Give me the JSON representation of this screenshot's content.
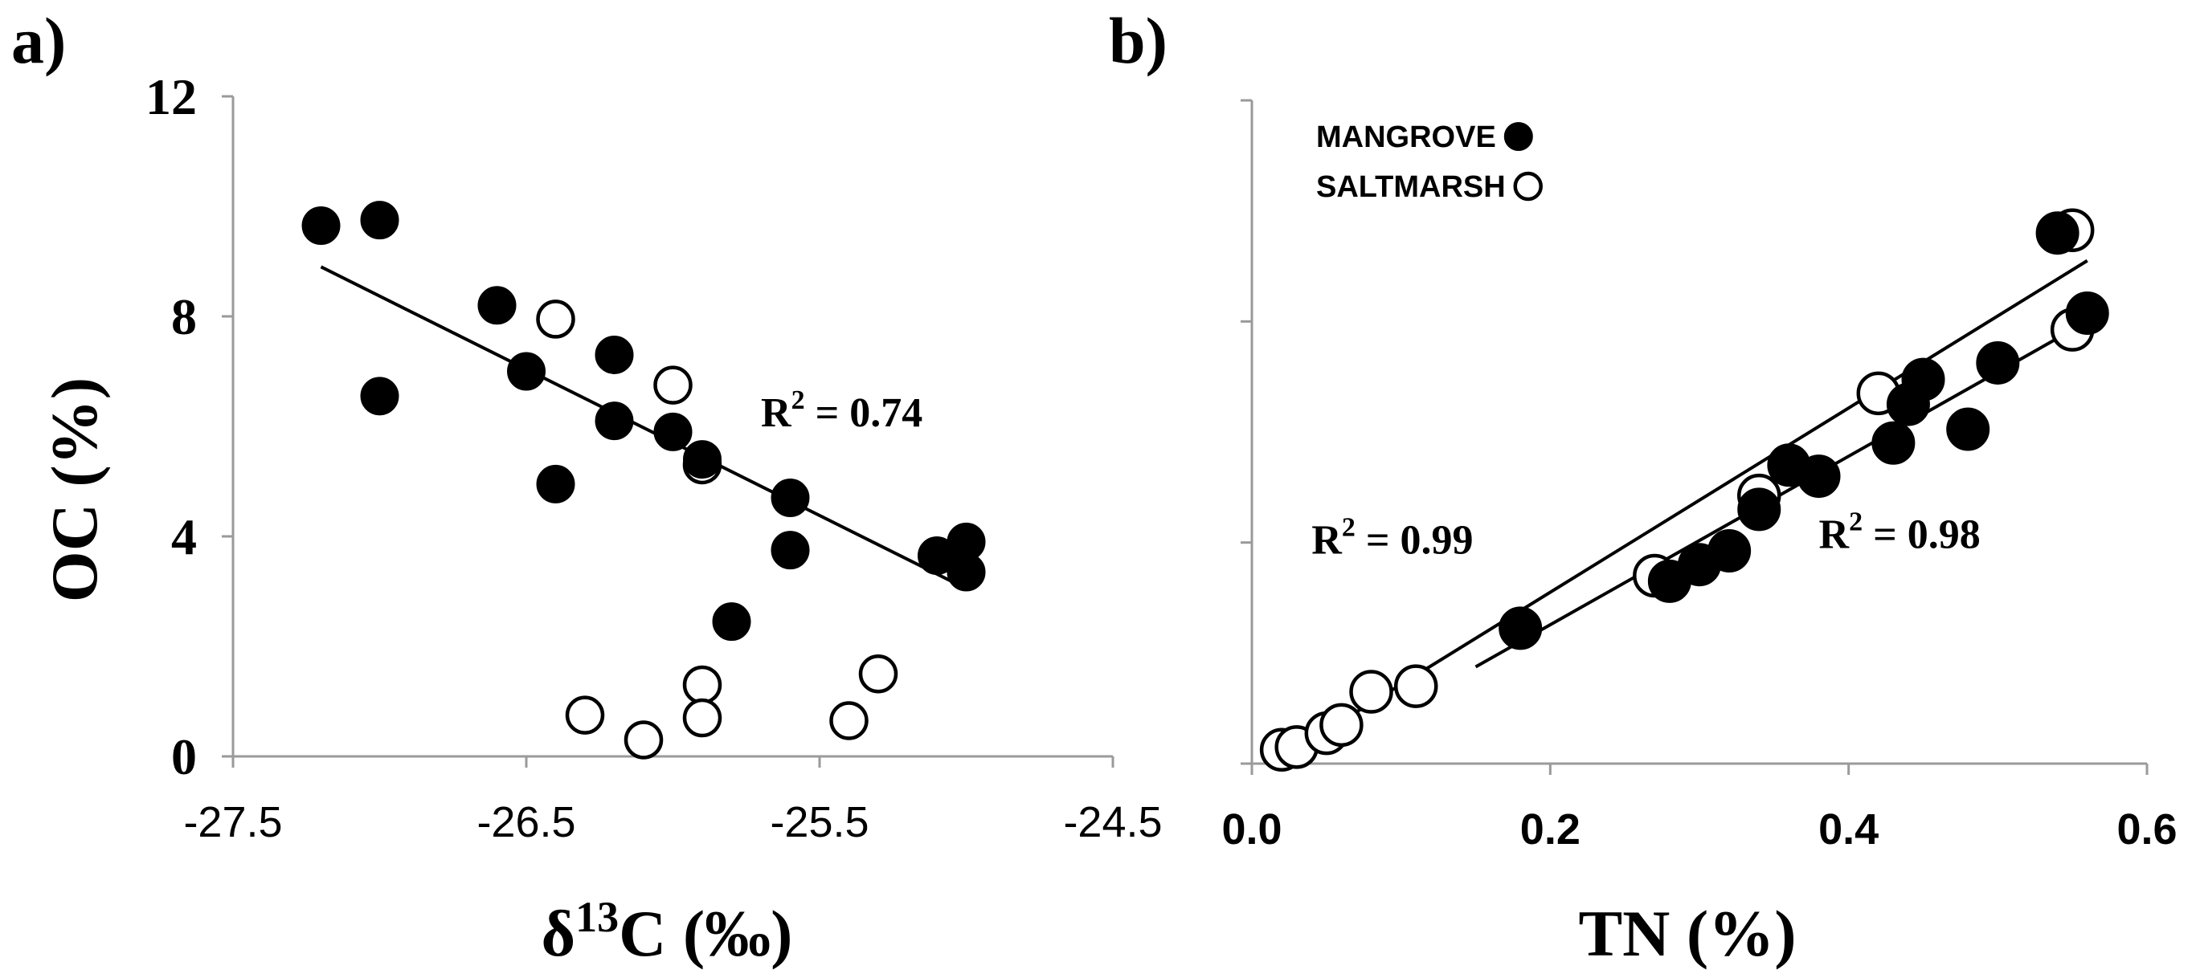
{
  "chart_data": [
    {
      "panel": "a)",
      "type": "scatter",
      "title": "",
      "xlabel": "δ13C (‰)",
      "xlabel_base": "δ",
      "xlabel_sup": "13",
      "xlabel_rest": "C (‰)",
      "ylabel": "OC (%)",
      "xlim": [
        -27.5,
        -24.5
      ],
      "ylim": [
        0,
        12
      ],
      "xticks": [
        -27.5,
        -26.5,
        -25.5,
        -24.5
      ],
      "xtick_labels": [
        "-27.5",
        "-26.5",
        "-25.5",
        "-24.5"
      ],
      "yticks": [
        0,
        4,
        8,
        12
      ],
      "ytick_labels": [
        "0",
        "4",
        "8",
        "12"
      ],
      "series": [
        {
          "name": "MANGROVE",
          "marker": "filled",
          "points": [
            [
              -27.2,
              9.65
            ],
            [
              -27.0,
              9.75
            ],
            [
              -27.0,
              6.55
            ],
            [
              -26.6,
              8.2
            ],
            [
              -26.5,
              7.0
            ],
            [
              -26.4,
              4.95
            ],
            [
              -26.2,
              7.3
            ],
            [
              -26.2,
              6.1
            ],
            [
              -26.0,
              5.9
            ],
            [
              -25.9,
              5.4
            ],
            [
              -25.8,
              2.45
            ],
            [
              -25.6,
              4.7
            ],
            [
              -25.6,
              3.75
            ],
            [
              -25.1,
              3.65
            ],
            [
              -25.0,
              3.9
            ],
            [
              -25.0,
              3.35
            ]
          ]
        },
        {
          "name": "SALTMARSH",
          "marker": "open",
          "points": [
            [
              -26.4,
              7.95
            ],
            [
              -26.0,
              6.75
            ],
            [
              -25.9,
              5.3
            ],
            [
              -26.3,
              0.75
            ],
            [
              -26.1,
              0.3
            ],
            [
              -25.9,
              1.3
            ],
            [
              -25.9,
              0.7
            ],
            [
              -25.4,
              0.65
            ],
            [
              -25.3,
              1.5
            ]
          ]
        }
      ],
      "trendlines": [
        {
          "x": [
            -27.2,
            -25.0
          ],
          "y": [
            8.9,
            3.05
          ]
        }
      ],
      "annotations": [
        {
          "base": "R",
          "sup": "2",
          "rest": " = 0.74",
          "at": [
            -25.7,
            6.0
          ]
        }
      ]
    },
    {
      "panel": "b)",
      "type": "scatter",
      "title": "",
      "xlabel": "TN (%)",
      "ylabel": "",
      "xlim": [
        0,
        0.6
      ],
      "ylim": [
        0,
        12
      ],
      "xticks": [
        0,
        0.2,
        0.4,
        0.6
      ],
      "xtick_labels": [
        "0.0",
        "0.2",
        "0.4",
        "0.6"
      ],
      "yticks": [
        0,
        4,
        8,
        12
      ],
      "ytick_labels": [],
      "legend": {
        "position": "top-left",
        "items": [
          {
            "label": "MANGROVE",
            "marker": "filled"
          },
          {
            "label": "SALTMARSH",
            "marker": "open"
          }
        ]
      },
      "series": [
        {
          "name": "MANGROVE",
          "marker": "filled",
          "points": [
            [
              0.18,
              2.45
            ],
            [
              0.28,
              3.3
            ],
            [
              0.3,
              3.6
            ],
            [
              0.32,
              3.85
            ],
            [
              0.34,
              4.6
            ],
            [
              0.36,
              5.4
            ],
            [
              0.38,
              5.2
            ],
            [
              0.43,
              5.8
            ],
            [
              0.44,
              6.5
            ],
            [
              0.45,
              6.95
            ],
            [
              0.48,
              6.05
            ],
            [
              0.5,
              7.25
            ],
            [
              0.54,
              9.6
            ],
            [
              0.56,
              8.15
            ]
          ]
        },
        {
          "name": "SALTMARSH",
          "marker": "open",
          "points": [
            [
              0.02,
              0.25
            ],
            [
              0.03,
              0.3
            ],
            [
              0.05,
              0.55
            ],
            [
              0.06,
              0.7
            ],
            [
              0.08,
              1.3
            ],
            [
              0.11,
              1.4
            ],
            [
              0.27,
              3.4
            ],
            [
              0.34,
              4.85
            ],
            [
              0.42,
              6.7
            ],
            [
              0.55,
              9.65
            ],
            [
              0.55,
              7.85
            ]
          ]
        }
      ],
      "trendlines": [
        {
          "x": [
            0.02,
            0.56
          ],
          "y": [
            0.1,
            9.1
          ]
        },
        {
          "x": [
            0.15,
            0.56
          ],
          "y": [
            1.75,
            8.0
          ]
        }
      ],
      "annotations": [
        {
          "base": "R",
          "sup": "2",
          "rest": " = 0.99",
          "at": [
            0.04,
            3.8
          ]
        },
        {
          "base": "R",
          "sup": "2",
          "rest": " = 0.98",
          "at": [
            0.38,
            3.9
          ]
        }
      ]
    }
  ]
}
